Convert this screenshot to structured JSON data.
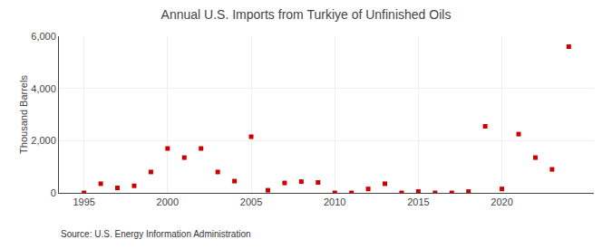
{
  "chart_data": {
    "type": "scatter",
    "title": "Annual U.S. Imports from Turkiye of Unfinished Oils",
    "ylabel": "Thousand Barrels",
    "annotations": [
      "Source: U.S. Energy Information Administration"
    ],
    "x": [
      1995,
      1996,
      1997,
      1998,
      1999,
      2000,
      2001,
      2002,
      2003,
      2004,
      2005,
      2006,
      2007,
      2008,
      2009,
      2010,
      2011,
      2012,
      2013,
      2014,
      2015,
      2016,
      2017,
      2018,
      2019,
      2020,
      2021,
      2022,
      2023,
      2024
    ],
    "values": [
      0,
      350,
      190,
      270,
      800,
      1700,
      1350,
      1700,
      800,
      450,
      2150,
      100,
      380,
      430,
      400,
      0,
      0,
      150,
      350,
      0,
      50,
      0,
      0,
      50,
      2550,
      150,
      2250,
      1350,
      900,
      5600
    ],
    "color": "#cc0000",
    "marker": "square",
    "xlim": [
      1993.5,
      2025.5
    ],
    "ylim": [
      0,
      6000
    ],
    "xticks": [
      1995,
      2000,
      2005,
      2010,
      2015,
      2020
    ],
    "yticks": [
      0,
      {
        "value": 2000,
        "label": "2,000"
      },
      {
        "value": 4000,
        "label": "4,000"
      },
      {
        "value": 6000,
        "label": "6,000"
      }
    ],
    "grid": true
  }
}
